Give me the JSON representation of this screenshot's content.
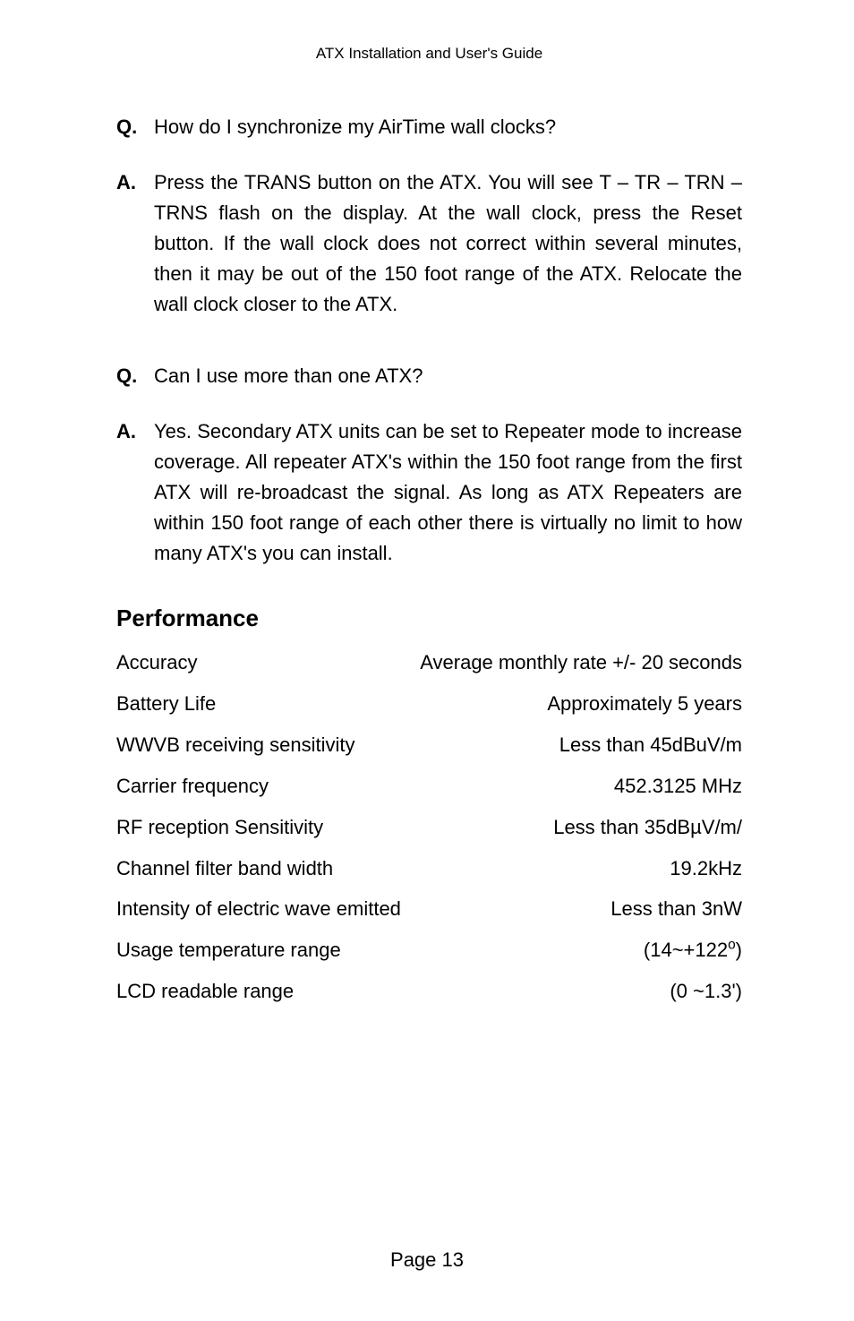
{
  "header": "ATX Installation and User's Guide",
  "qa": [
    {
      "label": "Q.",
      "text": "How do I synchronize my AirTime wall clocks?",
      "justified": false
    },
    {
      "label": "A.",
      "text": "Press the TRANS button on the ATX. You will see T – TR – TRN – TRNS flash on the display. At the wall clock, press the Reset button. If the wall clock does not correct within several minutes, then it may be out of the 150 foot range of the ATX. Relocate the wall clock closer to the ATX.",
      "justified": true
    },
    {
      "label": "Q.",
      "text": "Can I use more than one ATX?",
      "justified": false
    },
    {
      "label": "A.",
      "text": "Yes. Secondary ATX units can be set to Repeater mode to increase coverage. All repeater ATX's within the 150 foot range from the first ATX will re-broadcast the signal. As long as ATX Repeaters are within 150 foot range of each other there is virtually no limit to how many ATX's you can install.",
      "justified": true
    }
  ],
  "performance": {
    "title": "Performance",
    "rows": [
      {
        "label": "Accuracy",
        "value": "Average monthly rate +/- 20 seconds"
      },
      {
        "label": "Battery Life",
        "value": "Approximately 5 years"
      },
      {
        "label": "WWVB receiving sensitivity",
        "value": "Less than 45dBuV/m"
      },
      {
        "label": "Carrier frequency",
        "value": "452.3125 MHz"
      },
      {
        "label": "RF reception Sensitivity",
        "value": "Less than 35dBµV/m/"
      },
      {
        "label": "Channel filter band width",
        "value": "19.2kHz"
      },
      {
        "label": "Intensity of electric wave emitted",
        "value": "Less than 3nW"
      },
      {
        "label": "Usage temperature range",
        "value": "(14~+122°)",
        "super": true
      },
      {
        "label": "LCD readable range",
        "value": "(0 ~1.3')"
      }
    ]
  },
  "footer": "Page 13"
}
